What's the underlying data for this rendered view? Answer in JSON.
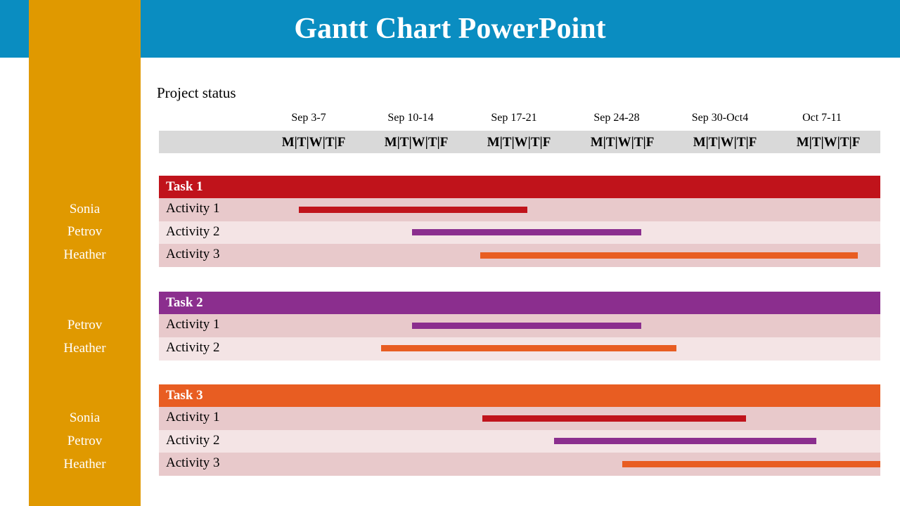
{
  "title": "Gantt Chart PowerPoint",
  "subtitle": "Project status",
  "weeks": [
    "Sep 3-7",
    "Sep 10-14",
    "Sep 17-21",
    "Sep 24-28",
    "Sep 30-Oct4",
    "Oct 7-11"
  ],
  "days_label": "M|T|W|T|F",
  "colors": {
    "header_bar": "#0a8dc1",
    "sidebar": "#e09900",
    "task1": "#c0131b",
    "task2": "#8b2e8e",
    "task3": "#e85d22",
    "row_dark": "#e8c9cb",
    "row_light": "#f4e4e5",
    "bar_red": "#c0131b",
    "bar_purple": "#8b2e8e",
    "bar_orange": "#e85d22"
  },
  "chart_data": {
    "type": "gantt",
    "time_unit": "workday",
    "tasks": [
      {
        "name": "Task 1",
        "color": "#c0131b",
        "people": [
          "Sonia",
          "Petrov",
          "Heather"
        ],
        "activities": [
          {
            "name": "Activity 1",
            "start": 1.8,
            "end": 12.9,
            "color": "#c0131b"
          },
          {
            "name": "Activity 2",
            "start": 7.3,
            "end": 18.4,
            "color": "#8b2e8e"
          },
          {
            "name": "Activity 3",
            "start": 10.6,
            "end": 28.9,
            "color": "#e85d22"
          }
        ]
      },
      {
        "name": "Task 2",
        "color": "#8b2e8e",
        "people": [
          "Petrov",
          "Heather"
        ],
        "activities": [
          {
            "name": "Activity 1",
            "start": 7.3,
            "end": 18.4,
            "color": "#8b2e8e"
          },
          {
            "name": "Activity 2",
            "start": 5.8,
            "end": 20.1,
            "color": "#e85d22"
          }
        ]
      },
      {
        "name": "Task 3",
        "color": "#e85d22",
        "people": [
          "Sonia",
          "Petrov",
          "Heather"
        ],
        "activities": [
          {
            "name": "Activity 1",
            "start": 10.7,
            "end": 23.5,
            "color": "#c0131b"
          },
          {
            "name": "Activity 2",
            "start": 14.2,
            "end": 26.9,
            "color": "#8b2e8e"
          },
          {
            "name": "Activity 3",
            "start": 17.5,
            "end": 30.0,
            "color": "#e85d22"
          }
        ]
      }
    ]
  }
}
